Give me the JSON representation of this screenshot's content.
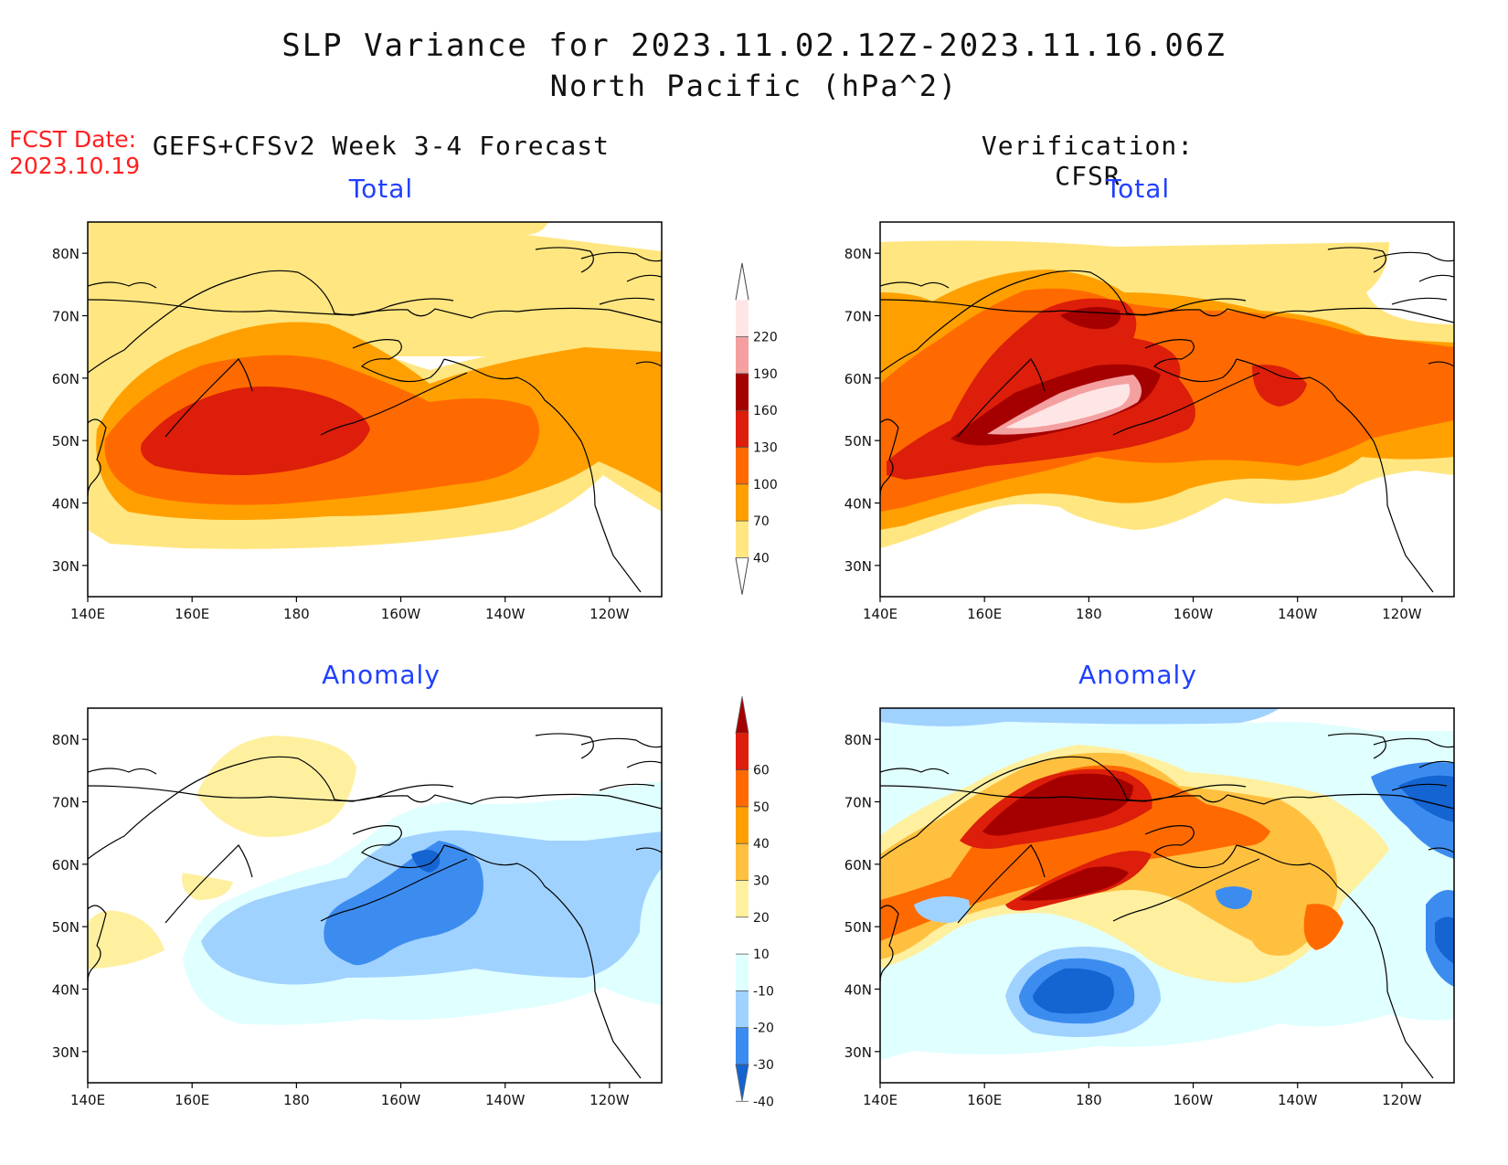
{
  "title": {
    "line1": "SLP Variance for 2023.11.02.12Z-2023.11.16.06Z",
    "line2": "North Pacific (hPa^2)"
  },
  "fcst": {
    "label": "FCST Date:",
    "date": "2023.10.19"
  },
  "left_heading": "GEFS+CFSv2 Week 3-4 Forecast",
  "right_heading": "Verification: CFSR",
  "panels": {
    "fc_total": {
      "title": "Total"
    },
    "ver_total": {
      "title": "Total"
    },
    "fc_anom": {
      "title": "Anomaly"
    },
    "ver_anom": {
      "title": "Anomaly"
    }
  },
  "axes": {
    "lat_labels": [
      "80N",
      "70N",
      "60N",
      "50N",
      "40N",
      "30N"
    ],
    "lon_labels": [
      "140E",
      "160E",
      "180",
      "160W",
      "140W",
      "120W"
    ]
  },
  "colorbars": {
    "total": {
      "labels": [
        "220",
        "190",
        "160",
        "130",
        "100",
        "70",
        "40"
      ],
      "colors": [
        "#ffe6e6",
        "#f4a0a0",
        "#a50000",
        "#dc1e0a",
        "#ff6a00",
        "#ffa000",
        "#ffe680"
      ]
    },
    "anomaly": {
      "labels": [
        "60",
        "50",
        "40",
        "30",
        "20",
        "10",
        "-10",
        "-20",
        "-30",
        "-40"
      ],
      "colors": [
        "#a50000",
        "#dc1e0a",
        "#ff6a00",
        "#ffa000",
        "#ffc040",
        "#fff0a0",
        "#ffffff",
        "#e0ffff",
        "#a0d2ff",
        "#3c8cf0",
        "#1464d2"
      ]
    }
  }
}
